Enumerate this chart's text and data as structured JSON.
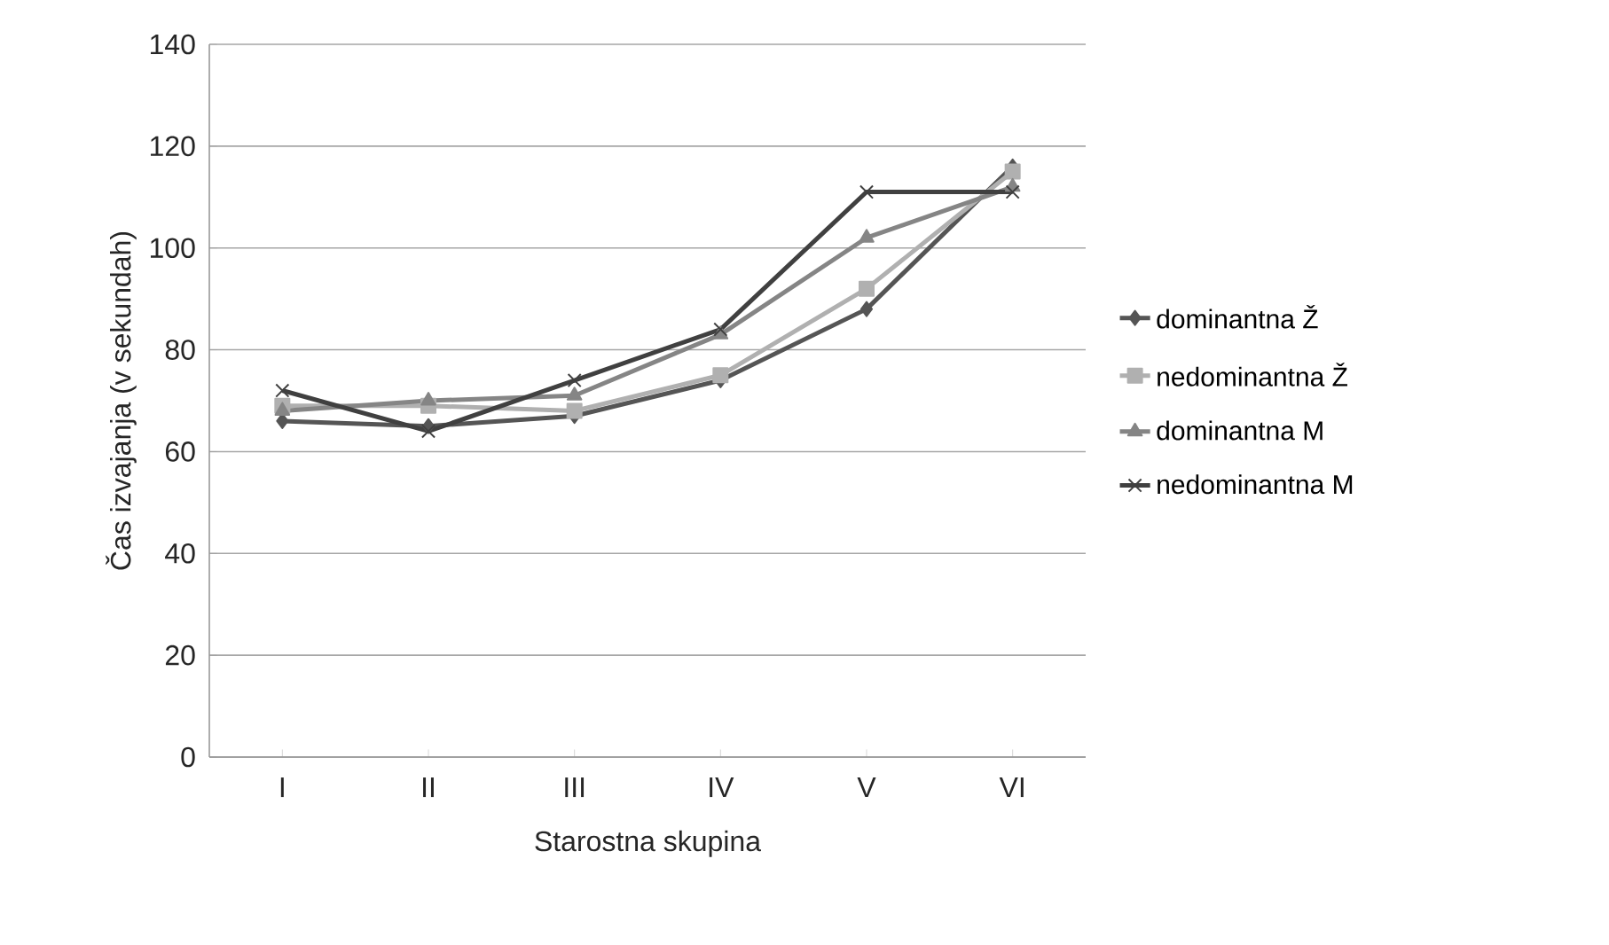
{
  "chart_data": {
    "type": "line",
    "xlabel": "Starostna skupina",
    "ylabel": "Čas izvajanja (v sekundah)",
    "categories": [
      "I",
      "II",
      "III",
      "IV",
      "V",
      "VI"
    ],
    "series": [
      {
        "name": "dominantna Ž",
        "color": "#555555",
        "marker": "diamond",
        "values": [
          66,
          65,
          67,
          74,
          88,
          116
        ]
      },
      {
        "name": "nedominantna Ž",
        "color": "#b0b0b0",
        "marker": "square",
        "values": [
          69,
          69,
          68,
          75,
          92,
          115
        ]
      },
      {
        "name": "dominantna M",
        "color": "#858585",
        "marker": "triangle",
        "values": [
          68,
          70,
          71,
          83,
          102,
          112
        ]
      },
      {
        "name": "nedominantna M",
        "color": "#404040",
        "marker": "cross",
        "values": [
          72,
          64,
          74,
          84,
          111,
          111
        ]
      }
    ],
    "ylim": [
      0,
      140
    ],
    "yticks": [
      0,
      20,
      40,
      60,
      80,
      100,
      120,
      140
    ],
    "grid": "y",
    "legend": "right"
  }
}
